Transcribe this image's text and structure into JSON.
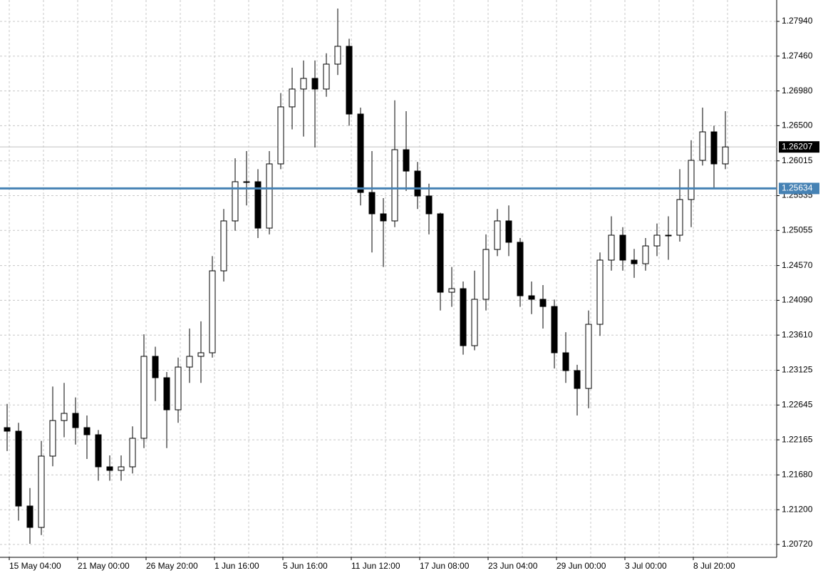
{
  "chart_data": {
    "type": "candlestick",
    "categories": [
      "15 May 04:00",
      null,
      null,
      null,
      null,
      null,
      "21 May 00:00",
      null,
      null,
      null,
      null,
      null,
      "26 May 20:00",
      null,
      null,
      null,
      null,
      null,
      "1 Jun 16:00",
      null,
      null,
      null,
      null,
      null,
      "5 Jun 16:00",
      null,
      null,
      null,
      null,
      null,
      "11 Jun 12:00",
      null,
      null,
      null,
      null,
      null,
      "17 Jun 08:00",
      null,
      null,
      null,
      null,
      null,
      "23 Jun 04:00",
      null,
      null,
      null,
      null,
      null,
      "29 Jun 00:00",
      null,
      null,
      null,
      null,
      null,
      "3 Jul 00:00",
      null,
      null,
      null,
      null,
      null,
      "8 Jul 20:00",
      null,
      null,
      null
    ],
    "open": [
      1.22333,
      1.22284,
      1.21251,
      1.20956,
      1.2194,
      1.22431,
      1.2253,
      1.22333,
      1.22235,
      1.21792,
      1.21743,
      1.21792,
      1.22186,
      1.23317,
      1.23022,
      1.22579,
      1.23169,
      1.23317,
      1.23366,
      1.24497,
      1.25186,
      1.25727,
      1.25727,
      1.25087,
      1.25973,
      1.2676,
      1.27006,
      1.27153,
      1.27006,
      1.2735,
      1.27596,
      1.26661,
      1.25579,
      1.25284,
      1.25186,
      1.26169,
      1.25874,
      1.2553,
      1.25284,
      1.24202,
      1.24251,
      1.23464,
      1.24104,
      1.24792,
      1.25186,
      1.24891,
      1.24153,
      1.24104,
      1.24005,
      1.23366,
      1.2312,
      1.22874,
      1.23759,
      1.24645,
      1.24989,
      1.24645,
      1.24595,
      1.24841,
      1.24989,
      1.24989,
      1.25481,
      1.26022,
      1.26415,
      1.25973
    ],
    "high": [
      1.2266,
      1.224,
      1.215,
      1.2215,
      1.229,
      1.2295,
      1.2275,
      1.225,
      1.223,
      1.2195,
      1.2195,
      1.2235,
      1.2362,
      1.2345,
      1.231,
      1.233,
      1.237,
      1.238,
      1.247,
      1.2535,
      1.2605,
      1.2615,
      1.259,
      1.2615,
      1.2695,
      1.273,
      1.274,
      1.274,
      1.275,
      1.28117,
      1.277,
      1.2675,
      1.2615,
      1.255,
      1.2685,
      1.267,
      1.26,
      1.257,
      1.253,
      1.2455,
      1.2435,
      1.245,
      1.25,
      1.2535,
      1.254,
      1.2495,
      1.2435,
      1.243,
      1.241,
      1.2365,
      1.232,
      1.2395,
      1.2475,
      1.2525,
      1.251,
      1.248,
      1.2495,
      1.2515,
      1.2525,
      1.259,
      1.263,
      1.2675,
      1.265,
      1.267
    ],
    "low": [
      1.2201,
      1.2105,
      1.2073,
      1.2085,
      1.218,
      1.222,
      1.221,
      1.219,
      1.216,
      1.216,
      1.216,
      1.217,
      1.2205,
      1.227,
      1.2205,
      1.224,
      1.2295,
      1.2295,
      1.233,
      1.2435,
      1.2505,
      1.254,
      1.2495,
      1.25,
      1.259,
      1.2645,
      1.2635,
      1.262,
      1.269,
      1.272,
      1.265,
      1.254,
      1.2475,
      1.2455,
      1.251,
      1.256,
      1.2535,
      1.25,
      1.2395,
      1.24,
      1.2334,
      1.234,
      1.2395,
      1.247,
      1.247,
      1.24,
      1.239,
      1.237,
      1.2315,
      1.2295,
      1.225,
      1.226,
      1.236,
      1.245,
      1.245,
      1.244,
      1.245,
      1.247,
      1.2465,
      1.249,
      1.251,
      1.2595,
      1.25634,
      1.259
    ],
    "close": [
      1.22284,
      1.21251,
      1.20956,
      1.2194,
      1.22431,
      1.2253,
      1.22333,
      1.22235,
      1.21792,
      1.21743,
      1.21792,
      1.22186,
      1.23317,
      1.23022,
      1.22579,
      1.23169,
      1.23317,
      1.23366,
      1.24497,
      1.25186,
      1.25727,
      1.25727,
      1.25087,
      1.25973,
      1.2676,
      1.27006,
      1.27153,
      1.27006,
      1.2735,
      1.27596,
      1.26661,
      1.25579,
      1.25284,
      1.25186,
      1.26169,
      1.25874,
      1.2553,
      1.25284,
      1.24202,
      1.24251,
      1.23464,
      1.24104,
      1.24792,
      1.25186,
      1.24891,
      1.24153,
      1.24104,
      1.24005,
      1.23366,
      1.2312,
      1.22874,
      1.23759,
      1.24645,
      1.24989,
      1.24645,
      1.24595,
      1.24841,
      1.24989,
      1.24989,
      1.25481,
      1.26022,
      1.26415,
      1.25973,
      1.26207
    ],
    "ylim": [
      1.20543,
      1.28235
    ],
    "yticks": [
      {
        "value": 1.2794,
        "label": "1.27940"
      },
      {
        "value": 1.2746,
        "label": "1.27460"
      },
      {
        "value": 1.2698,
        "label": "1.26980"
      },
      {
        "value": 1.265,
        "label": "1.26500"
      },
      1.26015,
      1.25535,
      1.25055,
      {
        "value": 1.2457,
        "label": "1.24570"
      },
      {
        "value": 1.2409,
        "label": "1.24090"
      },
      {
        "value": 1.2361,
        "label": "1.23610"
      },
      1.23125,
      1.22645,
      1.22165,
      {
        "value": 1.2168,
        "label": "1.21680"
      },
      {
        "value": 1.212,
        "label": "1.21200"
      },
      {
        "value": 1.2072,
        "label": "1.20720"
      }
    ],
    "grid": true,
    "bull_color": "#ffffff",
    "bear_color": "#000000",
    "current_price": 1.26207,
    "level_line": {
      "value": 1.25634,
      "color": "#4682b4"
    }
  }
}
